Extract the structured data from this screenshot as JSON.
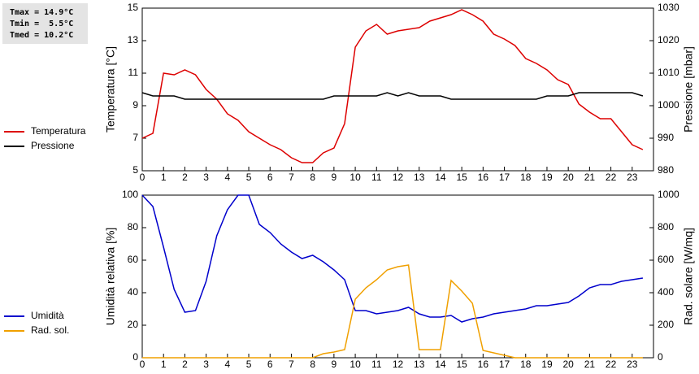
{
  "chart_data": [
    {
      "type": "line",
      "ylabel": "Temperatura [°C]",
      "y2label": "Pressione [mbar]",
      "annotations": [
        "Tmax = 14.9°C",
        "Tmin =  5.5°C",
        "Tmed = 10.2°C"
      ],
      "x": [
        0,
        0.5,
        1,
        1.5,
        2,
        2.5,
        3,
        3.5,
        4,
        4.5,
        5,
        5.5,
        6,
        6.5,
        7,
        7.5,
        8,
        8.5,
        9,
        9.5,
        10,
        10.5,
        11,
        11.5,
        12,
        12.5,
        13,
        13.5,
        14,
        14.5,
        15,
        15.5,
        16,
        16.5,
        17,
        17.5,
        18,
        18.5,
        19,
        19.5,
        20,
        20.5,
        21,
        21.5,
        22,
        22.5,
        23,
        23.5
      ],
      "xlim": [
        0,
        24
      ],
      "xticks": [
        0,
        1,
        2,
        3,
        4,
        5,
        6,
        7,
        8,
        9,
        10,
        11,
        12,
        13,
        14,
        15,
        16,
        17,
        18,
        19,
        20,
        21,
        22,
        23
      ],
      "ylim": [
        5,
        15
      ],
      "yticks": [
        5,
        7,
        9,
        11,
        13,
        15
      ],
      "y2lim": [
        980,
        1030
      ],
      "y2ticks": [
        980,
        990,
        1000,
        1010,
        1020,
        1030
      ],
      "series": [
        {
          "name": "Temperatura",
          "color": "#dd0000",
          "values": [
            7.0,
            7.3,
            11.0,
            10.9,
            11.2,
            10.9,
            10.0,
            9.4,
            8.5,
            8.1,
            7.4,
            7.0,
            6.6,
            6.3,
            5.8,
            5.5,
            5.5,
            6.1,
            6.4,
            7.9,
            12.6,
            13.6,
            14.0,
            13.4,
            13.6,
            13.7,
            13.8,
            14.2,
            14.4,
            14.6,
            14.9,
            14.6,
            14.2,
            13.4,
            13.1,
            12.7,
            11.9,
            11.6,
            11.2,
            10.6,
            10.3,
            9.1,
            8.6,
            8.2,
            8.2,
            7.4,
            6.6,
            6.3
          ]
        },
        {
          "name": "Pressione",
          "color": "#000000",
          "axis": "y2",
          "values": [
            1004,
            1003,
            1003,
            1003,
            1002,
            1002,
            1002,
            1002,
            1002,
            1002,
            1002,
            1002,
            1002,
            1002,
            1002,
            1002,
            1002,
            1002,
            1003,
            1003,
            1003,
            1003,
            1003,
            1004,
            1003,
            1004,
            1003,
            1003,
            1003,
            1002,
            1002,
            1002,
            1002,
            1002,
            1002,
            1002,
            1002,
            1002,
            1003,
            1003,
            1003,
            1004,
            1004,
            1004,
            1004,
            1004,
            1004,
            1003
          ]
        }
      ]
    },
    {
      "type": "line",
      "ylabel": "Umidità relativa [%]",
      "y2label": "Rad. solare [W/mq]",
      "x": [
        0,
        0.5,
        1,
        1.5,
        2,
        2.5,
        3,
        3.5,
        4,
        4.5,
        5,
        5.5,
        6,
        6.5,
        7,
        7.5,
        8,
        8.5,
        9,
        9.5,
        10,
        10.5,
        11,
        11.5,
        12,
        12.5,
        13,
        13.5,
        14,
        14.5,
        15,
        15.5,
        16,
        16.5,
        17,
        17.5,
        18,
        18.5,
        19,
        19.5,
        20,
        20.5,
        21,
        21.5,
        22,
        22.5,
        23,
        23.5
      ],
      "xlim": [
        0,
        24
      ],
      "xticks": [
        0,
        1,
        2,
        3,
        4,
        5,
        6,
        7,
        8,
        9,
        10,
        11,
        12,
        13,
        14,
        15,
        16,
        17,
        18,
        19,
        20,
        21,
        22,
        23
      ],
      "ylim": [
        0,
        100
      ],
      "yticks": [
        0,
        20,
        40,
        60,
        80,
        100
      ],
      "y2lim": [
        0,
        1000
      ],
      "y2ticks": [
        0,
        200,
        400,
        600,
        800,
        1000
      ],
      "series": [
        {
          "name": "Umidità",
          "color": "#0000cc",
          "values": [
            100,
            93,
            68,
            42,
            28,
            29,
            47,
            75,
            91,
            100,
            100,
            82,
            77,
            70,
            65,
            61,
            63,
            59,
            54,
            48,
            29,
            29,
            27,
            28,
            29,
            31,
            27,
            25,
            25,
            26,
            22,
            24,
            25,
            27,
            28,
            29,
            30,
            32,
            32,
            33,
            34,
            38,
            43,
            45,
            45,
            47,
            48,
            49
          ]
        },
        {
          "name": "Rad. sol.",
          "color": "#f0a000",
          "axis": "y2",
          "values": [
            0,
            0,
            0,
            0,
            0,
            0,
            0,
            0,
            0,
            0,
            0,
            0,
            0,
            0,
            0,
            0,
            0,
            25,
            35,
            50,
            360,
            430,
            480,
            540,
            560,
            570,
            50,
            50,
            50,
            475,
            410,
            335,
            45,
            30,
            15,
            0,
            0,
            0,
            0,
            0,
            0,
            0,
            0,
            0,
            0,
            0,
            0,
            0
          ]
        }
      ]
    }
  ]
}
